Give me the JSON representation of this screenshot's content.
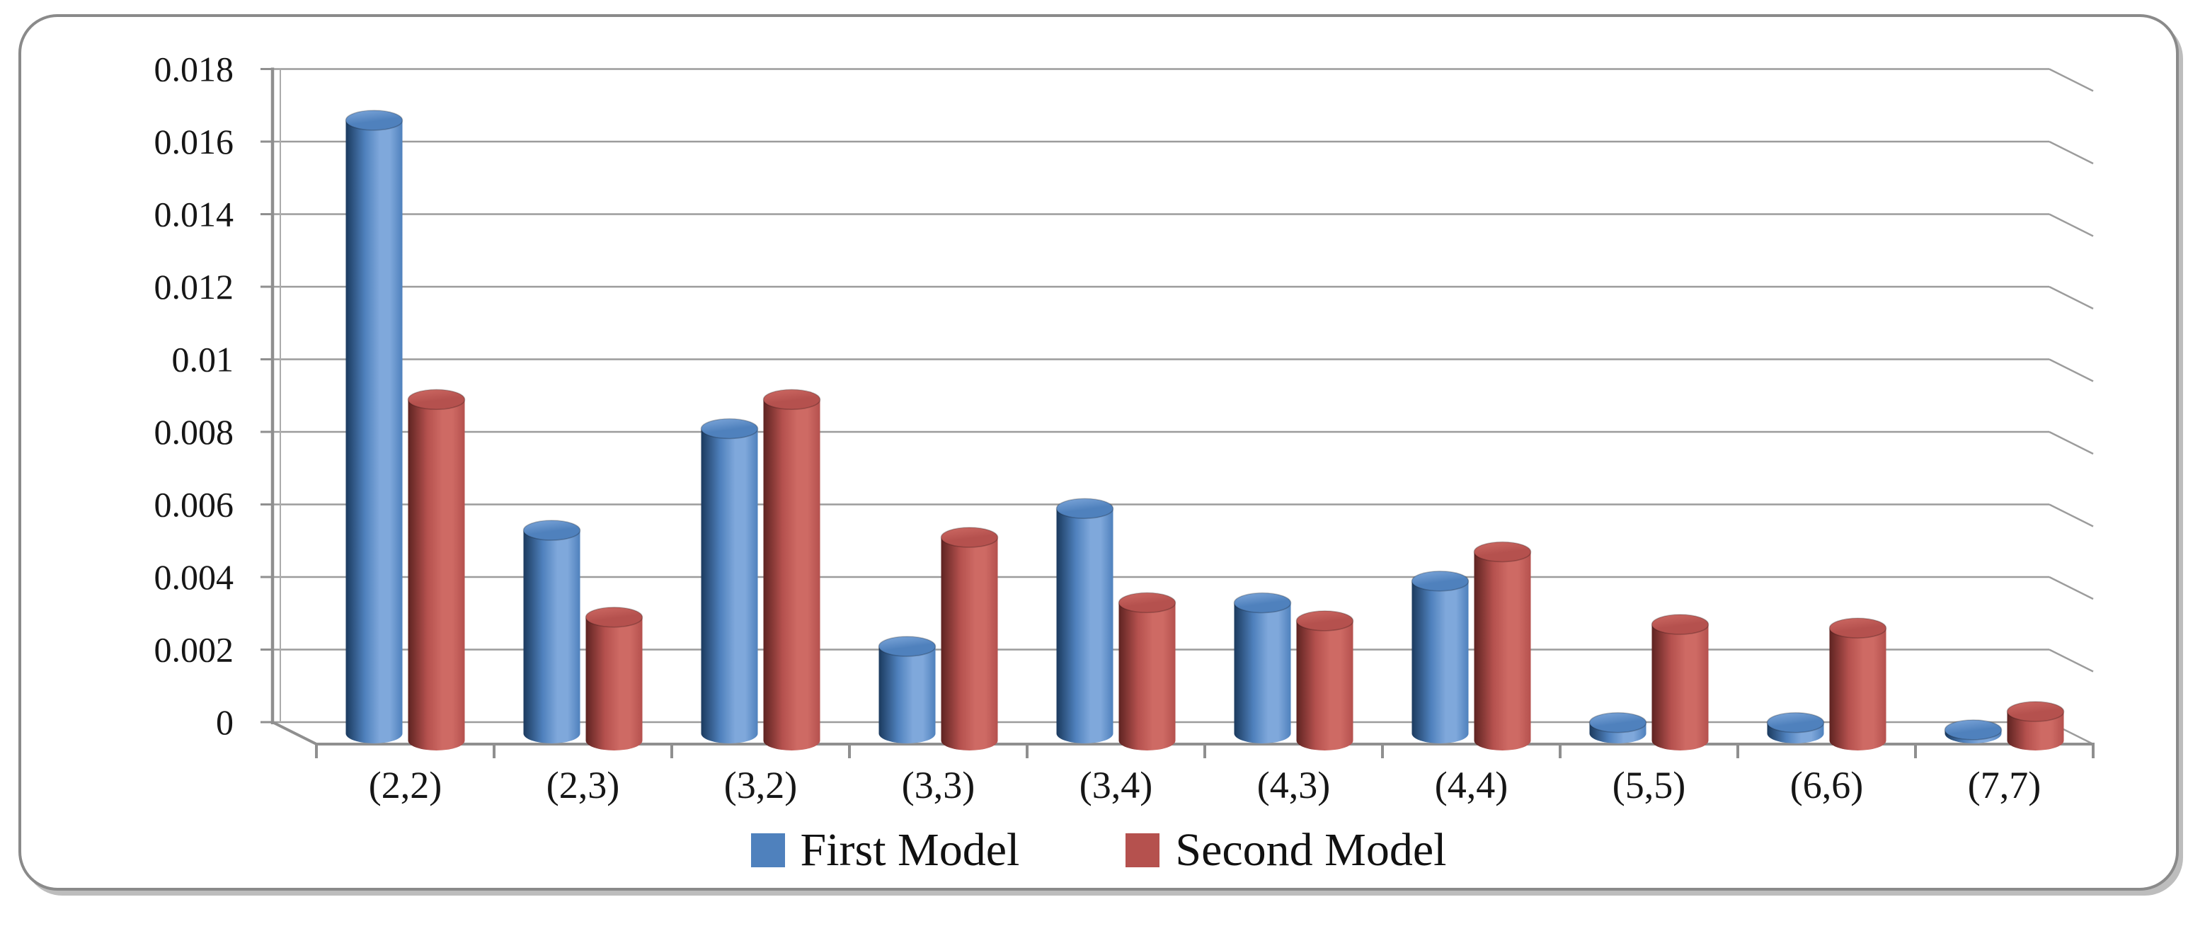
{
  "figure": {
    "background": "#FFFFFF",
    "frame_border_color": "#8A8A8A",
    "frame_shadow_color": "#BDBDBD"
  },
  "chart_data": {
    "type": "bar",
    "subtype": "3d-cylinder",
    "title": "",
    "xlabel": "",
    "ylabel": "",
    "categories": [
      "(2,2)",
      "(2,3)",
      "(3,2)",
      "(3,3)",
      "(3,4)",
      "(4,3)",
      "(4,4)",
      "(5,5)",
      "(6,6)",
      "(7,7)"
    ],
    "series": [
      {
        "name": "First Model",
        "color": "#4F81BD",
        "color_dark": "#1B3A5E",
        "color_light": "#7FA8DB",
        "values": [
          0.0169,
          0.0056,
          0.0084,
          0.0024,
          0.0062,
          0.0036,
          0.0042,
          0.0003,
          0.0003,
          0.0001
        ]
      },
      {
        "name": "Second Model",
        "color": "#B5514E",
        "color_dark": "#5E2321",
        "color_light": "#CE6A64",
        "values": [
          0.0094,
          0.0034,
          0.0094,
          0.0056,
          0.0038,
          0.0033,
          0.0052,
          0.0032,
          0.0031,
          0.0008
        ]
      }
    ],
    "ylim": [
      0,
      0.018
    ],
    "ytick_step": 0.002,
    "yticks": [
      "0",
      "0.002",
      "0.004",
      "0.006",
      "0.008",
      "0.01",
      "0.012",
      "0.014",
      "0.016",
      "0.018"
    ],
    "grid": true,
    "gridline_color": "#9C9C9C",
    "axis_color": "#8F8F8F",
    "text_color": "#161616",
    "legend_position": "bottom"
  }
}
